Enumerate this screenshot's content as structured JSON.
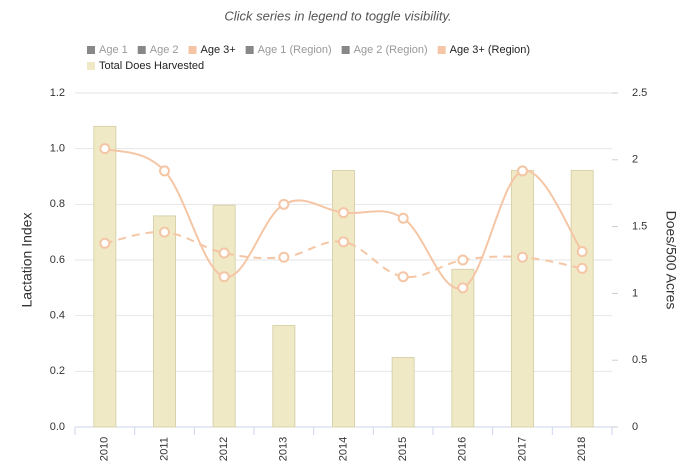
{
  "chart_data": {
    "type": "bar-line",
    "note": "Click series in legend to toggle visibility.",
    "categories": [
      "2010",
      "2011",
      "2012",
      "2013",
      "2014",
      "2015",
      "2016",
      "2017",
      "2018"
    ],
    "series": [
      {
        "name": "Age 1",
        "color": "#888888",
        "hidden": true,
        "values": [
          null,
          null,
          null,
          null,
          null,
          null,
          null,
          null,
          null
        ]
      },
      {
        "name": "Age 2",
        "color": "#888888",
        "hidden": true,
        "values": [
          null,
          null,
          null,
          null,
          null,
          null,
          null,
          null,
          null
        ]
      },
      {
        "name": "Age 3+",
        "color": "#f5c6a5",
        "kind": "line",
        "values": [
          1.0,
          0.92,
          0.54,
          0.8,
          0.77,
          0.75,
          0.5,
          0.92,
          0.63
        ]
      },
      {
        "name": "Age 1 (Region)",
        "color": "#888888",
        "hidden": true,
        "values": [
          null,
          null,
          null,
          null,
          null,
          null,
          null,
          null,
          null
        ]
      },
      {
        "name": "Age 2 (Region)",
        "color": "#888888",
        "hidden": true,
        "values": [
          null,
          null,
          null,
          null,
          null,
          null,
          null,
          null,
          null
        ]
      },
      {
        "name": "Age 3+ (Region)",
        "color": "#f5c6a5",
        "kind": "dashed-line",
        "values": [
          0.66,
          0.7,
          0.625,
          0.61,
          0.665,
          0.54,
          0.6,
          0.61,
          0.57
        ]
      },
      {
        "name": "Total Does Harvested",
        "color": "#efe9c6",
        "kind": "bar",
        "axis": "y2",
        "values": [
          2.25,
          1.58,
          1.66,
          0.76,
          1.92,
          0.52,
          1.18,
          1.92,
          1.92
        ]
      }
    ],
    "ylabel": "Lactation Index",
    "y2label": "Does/500 Acres",
    "ylim": [
      0,
      1.2
    ],
    "yticks": [
      {
        "value": 0,
        "label": "0.0"
      },
      0.2,
      0.4,
      0.6,
      0.8,
      {
        "value": 1,
        "label": "1.0"
      },
      1.2
    ],
    "y2lim": [
      0,
      2.5
    ],
    "y2ticks": [
      0,
      0.5,
      1,
      1.5,
      2,
      2.5
    ],
    "grid": true
  }
}
